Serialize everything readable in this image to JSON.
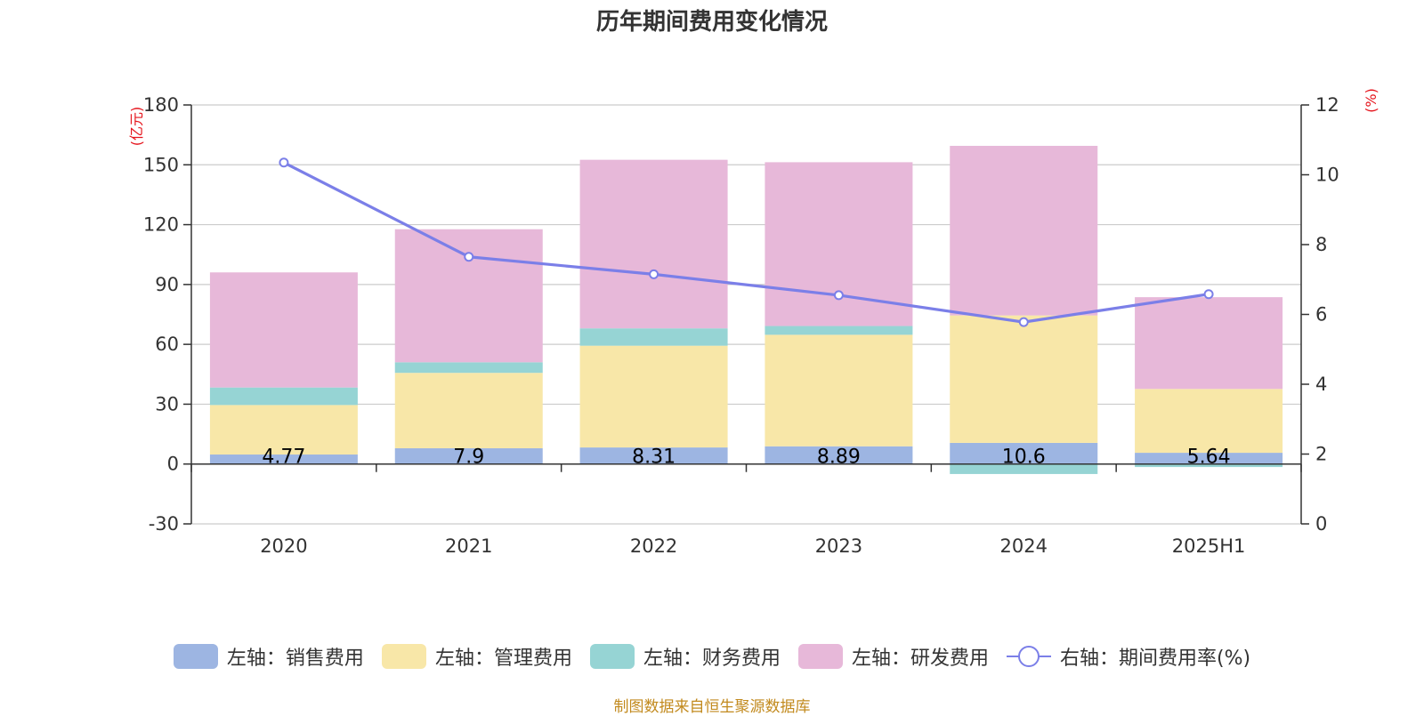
{
  "chart_data": {
    "type": "bar",
    "stacked": true,
    "title": "历年期间费用变化情况",
    "categories": [
      "2020",
      "2021",
      "2022",
      "2023",
      "2024",
      "2025H1"
    ],
    "y_left": {
      "unit": "(亿元)",
      "ylim": [
        -30,
        180
      ],
      "ticks": [
        -30,
        0,
        30,
        60,
        90,
        120,
        150,
        180
      ]
    },
    "y_right": {
      "unit": "(%)",
      "ylim": [
        0,
        12
      ],
      "ticks": [
        0,
        2,
        4,
        6,
        8,
        10,
        12
      ]
    },
    "series": [
      {
        "name": "左轴：销售费用",
        "axis": "left",
        "type": "bar",
        "color": "#9db5e2",
        "values": [
          4.77,
          7.9,
          8.31,
          8.89,
          10.6,
          5.64
        ],
        "labels": [
          "4.77",
          "7.9",
          "8.31",
          "8.89",
          "10.6",
          "5.64"
        ]
      },
      {
        "name": "左轴：管理费用",
        "axis": "left",
        "type": "bar",
        "color": "#f8e7a8",
        "values": [
          24.8,
          37.8,
          51.0,
          55.9,
          63.9,
          32.0
        ]
      },
      {
        "name": "左轴：财务费用",
        "axis": "left",
        "type": "bar",
        "color": "#96d4d4",
        "values": [
          8.8,
          5.3,
          8.7,
          4.4,
          -5.0,
          -1.5
        ]
      },
      {
        "name": "左轴：研发费用",
        "axis": "left",
        "type": "bar",
        "color": "#e7b8d9",
        "values": [
          57.7,
          66.7,
          84.5,
          82.1,
          85.0,
          46.0
        ]
      },
      {
        "name": "右轴：期间费用率(%)",
        "axis": "right",
        "type": "line",
        "color": "#7b7fe8",
        "values": [
          10.35,
          7.65,
          7.15,
          6.55,
          5.78,
          6.58
        ]
      }
    ],
    "legend_position": "bottom",
    "grid": true
  },
  "source_note": "制图数据来自恒生聚源数据库"
}
